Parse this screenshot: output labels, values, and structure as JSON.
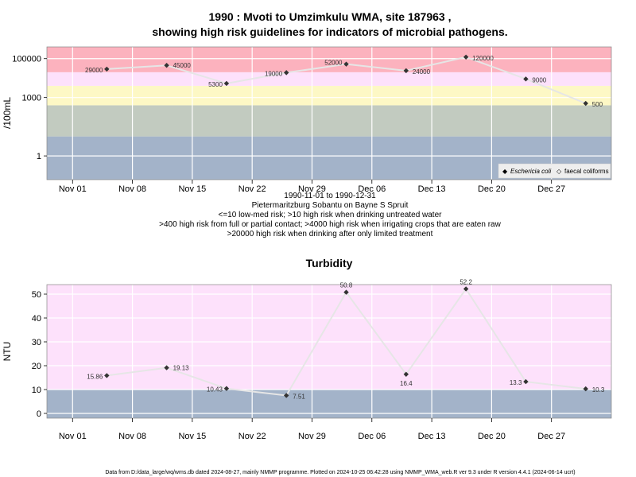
{
  "colors": {
    "low": "#a3b3c9",
    "mid": "#c2cbc0",
    "yellow": "#fdf8c5",
    "lightpink": "#fde1fb",
    "red": "#fcb2be",
    "line": "#e6e6e6",
    "grid": "#ffffff",
    "point": "#333333"
  },
  "chart_data": [
    {
      "type": "line",
      "title": "1990 : Mvoti to Umzimkulu WMA, site 187963 ,",
      "title2": "showing high risk guidelines for indicators of microbial pathogens.",
      "ylabel": "/100mL",
      "yscale": "log",
      "ylim": [
        0.06,
        400000
      ],
      "xlim": [
        "1990-10-29",
        "1991-01-03"
      ],
      "x_ticks": [
        {
          "date": "1990-11-01",
          "label": "Nov 01"
        },
        {
          "date": "1990-11-08",
          "label": "Nov 08"
        },
        {
          "date": "1990-11-15",
          "label": "Nov 15"
        },
        {
          "date": "1990-11-22",
          "label": "Nov 22"
        },
        {
          "date": "1990-11-29",
          "label": "Nov 29"
        },
        {
          "date": "1990-12-06",
          "label": "Dec 06"
        },
        {
          "date": "1990-12-13",
          "label": "Dec 13"
        },
        {
          "date": "1990-12-20",
          "label": "Dec 20"
        },
        {
          "date": "1990-12-27",
          "label": "Dec 27"
        }
      ],
      "y_ticks": [
        {
          "value": 100000,
          "label": "100000"
        },
        {
          "value": 1000,
          "label": "1000"
        },
        {
          "value": 1,
          "label": "1"
        }
      ],
      "bands": [
        {
          "from": 0.06,
          "to": 10,
          "color": "low"
        },
        {
          "from": 10,
          "to": 400,
          "color": "mid"
        },
        {
          "from": 400,
          "to": 4000,
          "color": "yellow"
        },
        {
          "from": 4000,
          "to": 20000,
          "color": "lightpink"
        },
        {
          "from": 20000,
          "to": 400000,
          "color": "red"
        }
      ],
      "series": [
        {
          "name": "Eschericia coli",
          "x": [
            "1990-11-05",
            "1990-11-12",
            "1990-11-19",
            "1990-11-26",
            "1990-12-03",
            "1990-12-10",
            "1990-12-17",
            "1990-12-24",
            "1990-12-31"
          ],
          "values": [
            29000,
            45000,
            5300,
            19000,
            52000,
            24000,
            120000,
            9000,
            500
          ],
          "labels": [
            "29000",
            "45000",
            "5300",
            "19000",
            "52000",
            "24000",
            "120000",
            "9000",
            "500"
          ]
        }
      ],
      "legend": [
        {
          "symbol": "◆",
          "label": "Eschericia coli",
          "italic": true
        },
        {
          "symbol": "◇",
          "label": "faecal coliforms",
          "italic": false
        }
      ],
      "legend_position": "bottom-right",
      "subtitle_lines": [
        "1990-11-01 to 1990-12-31",
        "Pietermaritzburg Sobantu on Bayne S Spruit",
        "<=10 low-med risk; >10 high risk when drinking untreated water",
        ">400 high risk from full or partial contact; >4000 high risk when irrigating crops that are eaten raw",
        ">20000 high risk when drinking after only limited treatment"
      ]
    },
    {
      "type": "line",
      "title": "Turbidity",
      "ylabel": "NTU",
      "ylim": [
        -2,
        54
      ],
      "xlim": [
        "1990-10-29",
        "1991-01-03"
      ],
      "x_ticks": [
        {
          "date": "1990-11-01",
          "label": "Nov 01"
        },
        {
          "date": "1990-11-08",
          "label": "Nov 08"
        },
        {
          "date": "1990-11-15",
          "label": "Nov 15"
        },
        {
          "date": "1990-11-22",
          "label": "Nov 22"
        },
        {
          "date": "1990-11-29",
          "label": "Nov 29"
        },
        {
          "date": "1990-12-06",
          "label": "Dec 06"
        },
        {
          "date": "1990-12-13",
          "label": "Dec 13"
        },
        {
          "date": "1990-12-20",
          "label": "Dec 20"
        },
        {
          "date": "1990-12-27",
          "label": "Dec 27"
        }
      ],
      "y_ticks": [
        {
          "value": 0,
          "label": "0"
        },
        {
          "value": 10,
          "label": "10"
        },
        {
          "value": 20,
          "label": "20"
        },
        {
          "value": 30,
          "label": "30"
        },
        {
          "value": 40,
          "label": "40"
        },
        {
          "value": 50,
          "label": "50"
        }
      ],
      "bands": [
        {
          "from": -2,
          "to": 10,
          "color": "low"
        },
        {
          "from": 10,
          "to": 54,
          "color": "lightpink"
        }
      ],
      "series": [
        {
          "x": [
            "1990-11-05",
            "1990-11-12",
            "1990-11-19",
            "1990-11-26",
            "1990-12-03",
            "1990-12-10",
            "1990-12-17",
            "1990-12-24",
            "1990-12-31"
          ],
          "values": [
            15.86,
            19.13,
            10.43,
            7.51,
            50.8,
            16.4,
            52.2,
            13.3,
            10.3
          ],
          "labels": [
            "15.86",
            "19.13",
            "10.43",
            "7.51",
            "50.8",
            "16.4",
            "52.2",
            "13.3",
            "10.3"
          ]
        }
      ]
    }
  ],
  "footer": "Data from D:/data_large/wq/wms.db dated 2024-08-27, mainly NMMP programme. Plotted on 2024-10-25 06:42:28 using NMMP_WMA_web.R ver 9.3 under R version 4.4.1 (2024-06-14 ucrt)"
}
